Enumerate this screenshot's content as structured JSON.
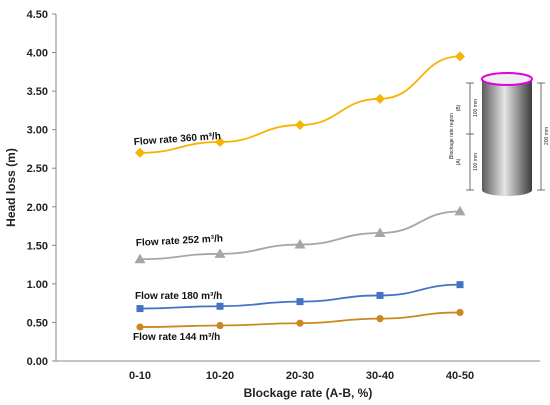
{
  "chart_data": {
    "type": "line",
    "xlabel": "Blockage rate (A-B, %)",
    "ylabel": "Head loss (m)",
    "categories": [
      "0-10",
      "10-20",
      "20-30",
      "30-40",
      "40-50"
    ],
    "ylim": [
      0.0,
      4.5
    ],
    "yticks": [
      "0.00",
      "0.50",
      "1.00",
      "1.50",
      "2.00",
      "2.50",
      "3.00",
      "3.50",
      "4.00",
      "4.50"
    ],
    "grid": false,
    "series": [
      {
        "name": "Flow rate 360 m³/h",
        "values": [
          2.7,
          2.84,
          3.06,
          3.4,
          3.95
        ],
        "color": "#f5b400",
        "marker": "diamond"
      },
      {
        "name": "Flow rate 252 m³/h",
        "values": [
          1.32,
          1.39,
          1.51,
          1.66,
          1.94
        ],
        "color": "#a6a6a6",
        "marker": "triangle"
      },
      {
        "name": "Flow rate 180 m³/h",
        "values": [
          0.68,
          0.71,
          0.77,
          0.85,
          0.99
        ],
        "color": "#4472c4",
        "marker": "square"
      },
      {
        "name": "Flow rate 144 m³/h",
        "values": [
          0.44,
          0.46,
          0.49,
          0.55,
          0.63
        ],
        "color": "#c9891e",
        "marker": "circle"
      }
    ]
  },
  "inset": {
    "top_label": "(B)",
    "bottom_label": "(A)",
    "region_label": "Blockage rate region",
    "upper_dim": "100 mm",
    "lower_dim": "100 mm",
    "total_dim": "200 mm"
  }
}
